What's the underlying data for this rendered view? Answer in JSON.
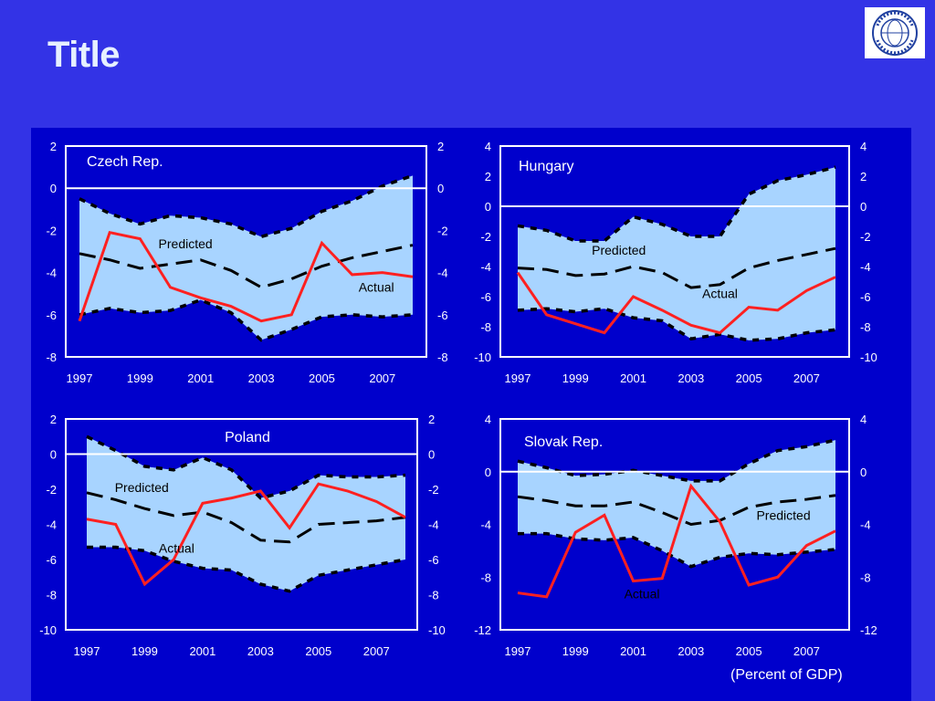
{
  "slide": {
    "title": "Title",
    "footnote": "(Percent of GDP)",
    "logo_icon": "imf-seal-icon",
    "colors": {
      "background": "#3333e6",
      "panel": "#0000cc",
      "band": "#a8d4ff",
      "actual": "#ff2020",
      "predicted": "#000000",
      "axis": "#ffffff"
    }
  },
  "chart_data": [
    {
      "type": "line",
      "title": "Czech Rep.",
      "x": [
        1997,
        1998,
        1999,
        2000,
        2001,
        2002,
        2003,
        2004,
        2005,
        2006,
        2007,
        2008
      ],
      "xticks": [
        "1997",
        "1999",
        "2001",
        "2003",
        "2005",
        "2007"
      ],
      "ylim": [
        -8,
        2
      ],
      "yticks": [
        2,
        0,
        -2,
        -4,
        -6,
        -8
      ],
      "series": [
        {
          "name": "Actual",
          "values": [
            -6.3,
            -2.1,
            -2.4,
            -4.7,
            -5.2,
            -5.6,
            -6.3,
            -6.0,
            -2.6,
            -4.1,
            -4.0,
            -4.2
          ]
        },
        {
          "name": "Predicted",
          "values": [
            -3.1,
            -3.4,
            -3.8,
            -3.6,
            -3.4,
            -3.9,
            -4.7,
            -4.3,
            -3.7,
            -3.3,
            -3.0,
            -2.7
          ]
        }
      ],
      "band": {
        "upper": [
          -0.5,
          -1.2,
          -1.7,
          -1.3,
          -1.4,
          -1.7,
          -2.3,
          -1.9,
          -1.1,
          -0.6,
          0.1,
          0.6
        ],
        "lower": [
          -6.0,
          -5.7,
          -5.9,
          -5.8,
          -5.3,
          -5.9,
          -7.2,
          -6.7,
          -6.1,
          -6.0,
          -6.1,
          -6.0
        ]
      },
      "annotations": [
        {
          "text": "Predicted",
          "x": 2000.5,
          "y": -2.85
        },
        {
          "text": "Actual",
          "x": 2006.8,
          "y": -4.9
        }
      ]
    },
    {
      "type": "line",
      "title": "Hungary",
      "x": [
        1997,
        1998,
        1999,
        2000,
        2001,
        2002,
        2003,
        2004,
        2005,
        2006,
        2007,
        2008
      ],
      "xticks": [
        "1997",
        "1999",
        "2001",
        "2003",
        "2005",
        "2007"
      ],
      "ylim": [
        -10,
        4
      ],
      "yticks": [
        4,
        2,
        0,
        -2,
        -4,
        -6,
        -8,
        -10
      ],
      "series": [
        {
          "name": "Actual",
          "values": [
            -4.4,
            -7.2,
            -7.8,
            -8.4,
            -6.0,
            -6.9,
            -7.9,
            -8.4,
            -6.7,
            -6.9,
            -5.6,
            -4.7
          ]
        },
        {
          "name": "Predicted",
          "values": [
            -4.1,
            -4.2,
            -4.6,
            -4.5,
            -4.0,
            -4.4,
            -5.4,
            -5.2,
            -4.1,
            -3.6,
            -3.2,
            -2.8
          ]
        }
      ],
      "band": {
        "upper": [
          -1.3,
          -1.6,
          -2.3,
          -2.3,
          -0.7,
          -1.2,
          -2.0,
          -2.0,
          0.8,
          1.7,
          2.1,
          2.6
        ],
        "lower": [
          -6.9,
          -6.8,
          -7.0,
          -6.8,
          -7.4,
          -7.6,
          -8.8,
          -8.5,
          -8.9,
          -8.8,
          -8.4,
          -8.2
        ]
      },
      "annotations": [
        {
          "text": "Predicted",
          "x": 2000.5,
          "y": -3.2
        },
        {
          "text": "Actual",
          "x": 2004.0,
          "y": -6.1
        }
      ]
    },
    {
      "type": "line",
      "title": "Poland",
      "x": [
        1997,
        1998,
        1999,
        2000,
        2001,
        2002,
        2003,
        2004,
        2005,
        2006,
        2007,
        2008
      ],
      "xticks": [
        "1997",
        "1999",
        "2001",
        "2003",
        "2005",
        "2007"
      ],
      "ylim": [
        -10,
        2
      ],
      "yticks": [
        2,
        0,
        -2,
        -4,
        -6,
        -8,
        -10
      ],
      "series": [
        {
          "name": "Actual",
          "values": [
            -3.7,
            -4.0,
            -7.4,
            -6.0,
            -2.8,
            -2.5,
            -2.1,
            -4.2,
            -1.7,
            -2.1,
            -2.7,
            -3.6
          ]
        },
        {
          "name": "Predicted",
          "values": [
            -2.2,
            -2.6,
            -3.1,
            -3.5,
            -3.3,
            -3.9,
            -4.9,
            -5.0,
            -4.0,
            -3.9,
            -3.8,
            -3.6
          ]
        }
      ],
      "band": {
        "upper": [
          1.0,
          0.2,
          -0.7,
          -0.9,
          -0.2,
          -0.9,
          -2.5,
          -2.1,
          -1.2,
          -1.3,
          -1.3,
          -1.2
        ],
        "lower": [
          -5.3,
          -5.3,
          -5.5,
          -6.1,
          -6.5,
          -6.6,
          -7.4,
          -7.8,
          -6.9,
          -6.6,
          -6.3,
          -6.0
        ]
      },
      "annotations": [
        {
          "text": "Predicted",
          "x": 1998.9,
          "y": -2.15
        },
        {
          "text": "Actual",
          "x": 2000.1,
          "y": -5.6
        }
      ]
    },
    {
      "type": "line",
      "title": "Slovak Rep.",
      "x": [
        1997,
        1998,
        1999,
        2000,
        2001,
        2002,
        2003,
        2004,
        2005,
        2006,
        2007,
        2008
      ],
      "xticks": [
        "1997",
        "1999",
        "2001",
        "2003",
        "2005",
        "2007"
      ],
      "ylim": [
        -12,
        4
      ],
      "yticks": [
        4,
        0,
        -4,
        -8,
        -12
      ],
      "series": [
        {
          "name": "Actual",
          "values": [
            -9.2,
            -9.5,
            -4.6,
            -3.3,
            -8.3,
            -8.1,
            -1.1,
            -3.8,
            -8.6,
            -8.0,
            -5.6,
            -4.5
          ]
        },
        {
          "name": "Predicted",
          "values": [
            -1.9,
            -2.2,
            -2.6,
            -2.6,
            -2.3,
            -3.1,
            -4.0,
            -3.7,
            -2.7,
            -2.3,
            -2.1,
            -1.8
          ]
        }
      ],
      "band": {
        "upper": [
          0.8,
          0.3,
          -0.3,
          -0.2,
          0.1,
          -0.3,
          -0.7,
          -0.7,
          0.6,
          1.6,
          1.9,
          2.4
        ],
        "lower": [
          -4.7,
          -4.7,
          -5.1,
          -5.2,
          -5.0,
          -6.0,
          -7.2,
          -6.5,
          -6.2,
          -6.3,
          -6.1,
          -5.9
        ]
      },
      "annotations": [
        {
          "text": "Predicted",
          "x": 2006.2,
          "y": -3.65
        },
        {
          "text": "Actual",
          "x": 2001.3,
          "y": -9.6
        }
      ]
    }
  ]
}
